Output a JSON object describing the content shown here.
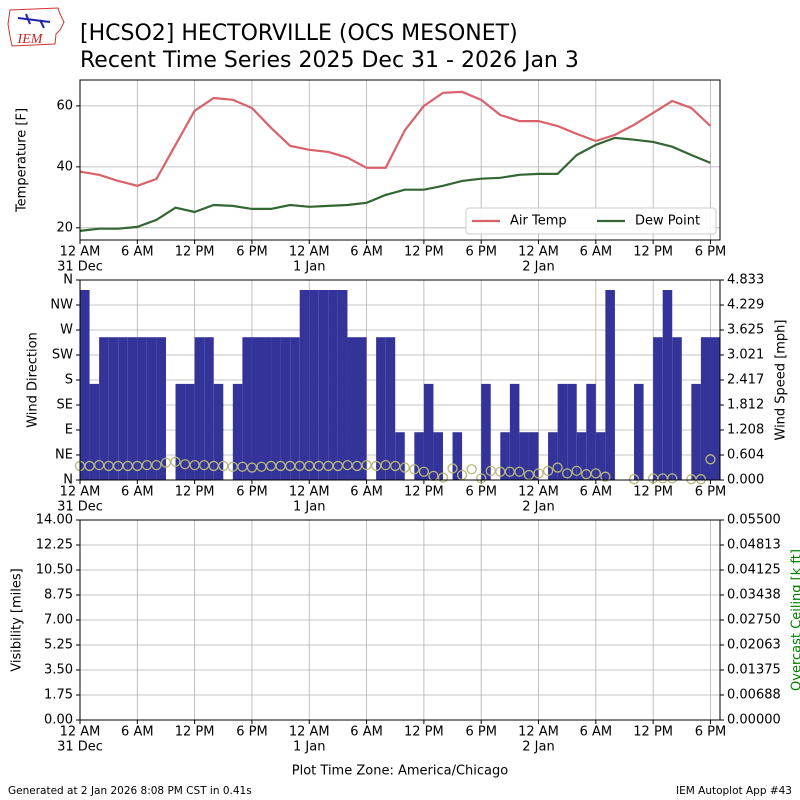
{
  "header": {
    "title": "[HCSO2] HECTORVILLE (OCS MESONET)",
    "subtitle": "Recent Time Series 2025 Dec 31 - 2026 Jan 3",
    "logo_text": "IEM"
  },
  "chart_data": [
    {
      "type": "line",
      "ylabel": "Temperature [F]",
      "grid": true,
      "legend": "lower right",
      "xlim": [
        0,
        67
      ],
      "xticks": [
        {
          "value": 0,
          "label": "12 AM"
        },
        {
          "value": 6,
          "label": "6 AM"
        },
        {
          "value": 12,
          "label": "12 PM"
        },
        {
          "value": 18,
          "label": "6 PM"
        },
        {
          "value": 24,
          "label": "12 AM"
        },
        {
          "value": 30,
          "label": "6 AM"
        },
        {
          "value": 36,
          "label": "12 PM"
        },
        {
          "value": 42,
          "label": "6 PM"
        },
        {
          "value": 48,
          "label": "12 AM"
        },
        {
          "value": 54,
          "label": "6 AM"
        },
        {
          "value": 60,
          "label": "12 PM"
        },
        {
          "value": 66,
          "label": "6 PM"
        }
      ],
      "xday_labels": [
        {
          "value": 0,
          "label": "31 Dec"
        },
        {
          "value": 24,
          "label": "1 Jan"
        },
        {
          "value": 48,
          "label": "2 Jan"
        }
      ],
      "ylim": [
        16,
        68.5
      ],
      "yticks": [
        20,
        40,
        60
      ],
      "x": [
        0,
        2,
        4,
        6,
        8,
        10,
        12,
        14,
        16,
        18,
        20,
        22,
        24,
        26,
        28,
        30,
        32,
        34,
        36,
        38,
        40,
        42,
        44,
        46,
        48,
        50,
        52,
        54,
        56,
        58,
        60,
        62,
        64,
        66
      ],
      "series": [
        {
          "name": "Air Temp",
          "color": "#d9616a",
          "values": [
            38.4,
            37.4,
            35.4,
            33.8,
            36,
            47.2,
            58.4,
            62.6,
            62,
            59.3,
            52.8,
            46.9,
            45.6,
            44.9,
            43,
            39.7,
            39.7,
            52,
            60,
            64.3,
            64.6,
            62,
            57,
            55,
            55,
            53.4,
            50.8,
            48.5,
            50.5,
            53.8,
            57.7,
            61.6,
            59.3,
            53.4
          ]
        },
        {
          "name": "Dew Point",
          "color": "#336633",
          "values": [
            19,
            19.7,
            19.7,
            20.3,
            22.6,
            26.6,
            25.2,
            27.5,
            27.2,
            26.2,
            26.2,
            27.5,
            26.9,
            27.2,
            27.5,
            28.2,
            30.8,
            32.5,
            32.5,
            33.8,
            35.4,
            36.1,
            36.4,
            37.4,
            37.7,
            37.7,
            43.9,
            47.2,
            49.5,
            48.9,
            48.2,
            46.6,
            43.9,
            41.3
          ]
        }
      ]
    },
    {
      "type": "bar",
      "ylabel": "Wind Direction",
      "y2label": "Wind Speed [mph]",
      "grid": true,
      "xlim": [
        0,
        67
      ],
      "xticks": [
        {
          "value": 0,
          "label": "12 AM"
        },
        {
          "value": 6,
          "label": "6 AM"
        },
        {
          "value": 12,
          "label": "12 PM"
        },
        {
          "value": 18,
          "label": "6 PM"
        },
        {
          "value": 24,
          "label": "12 AM"
        },
        {
          "value": 30,
          "label": "6 AM"
        },
        {
          "value": 36,
          "label": "12 PM"
        },
        {
          "value": 42,
          "label": "6 PM"
        },
        {
          "value": 48,
          "label": "12 AM"
        },
        {
          "value": 54,
          "label": "6 AM"
        },
        {
          "value": 60,
          "label": "12 PM"
        },
        {
          "value": 66,
          "label": "6 PM"
        }
      ],
      "xday_labels": [
        {
          "value": 0,
          "label": "31 Dec"
        },
        {
          "value": 24,
          "label": "1 Jan"
        },
        {
          "value": 48,
          "label": "2 Jan"
        }
      ],
      "ylim": [
        0,
        360
      ],
      "yticks": [
        {
          "value": 0,
          "label": "N"
        },
        {
          "value": 45,
          "label": "NE"
        },
        {
          "value": 90,
          "label": "E"
        },
        {
          "value": 135,
          "label": "SE"
        },
        {
          "value": 180,
          "label": "S"
        },
        {
          "value": 225,
          "label": "SW"
        },
        {
          "value": 270,
          "label": "W"
        },
        {
          "value": 315,
          "label": "NW"
        },
        {
          "value": 360,
          "label": "N"
        }
      ],
      "y2lim": [
        0,
        4.833
      ],
      "y2ticks": [
        {
          "value": 0,
          "label": "0.000"
        },
        0.604,
        1.208,
        1.812,
        2.417,
        3.021,
        3.625,
        4.229,
        4.833
      ],
      "x": [
        0,
        1,
        2,
        3,
        4,
        5,
        6,
        7,
        8,
        9,
        10,
        11,
        12,
        13,
        14,
        15,
        16,
        17,
        18,
        19,
        20,
        21,
        22,
        23,
        24,
        25,
        26,
        27,
        28,
        29,
        30,
        31,
        32,
        33,
        34,
        35,
        36,
        37,
        38,
        39,
        40,
        41,
        42,
        43,
        44,
        45,
        46,
        47,
        48,
        49,
        50,
        51,
        52,
        53,
        54,
        55,
        56,
        57,
        58,
        59,
        60,
        61,
        62,
        63,
        64,
        65,
        66
      ],
      "series": [
        {
          "color": "#333399",
          "values": [
            342,
            173,
            257,
            257,
            257,
            257,
            257,
            257,
            257,
            null,
            173,
            173,
            257,
            257,
            173,
            null,
            173,
            257,
            257,
            257,
            257,
            257,
            257,
            342,
            342,
            342,
            342,
            342,
            257,
            257,
            null,
            257,
            257,
            86,
            null,
            86,
            173,
            86,
            null,
            86,
            null,
            null,
            173,
            null,
            86,
            173,
            86,
            86,
            null,
            86,
            173,
            173,
            86,
            173,
            86,
            342,
            null,
            null,
            173,
            null,
            257,
            342,
            257,
            null,
            173,
            257,
            257
          ]
        },
        {
          "type": "scatter",
          "axis": "y2",
          "color": "#b8b87a",
          "values": [
            0.34,
            0.34,
            0.36,
            0.34,
            0.34,
            0.34,
            0.34,
            0.36,
            0.36,
            0.42,
            0.44,
            0.38,
            0.36,
            0.36,
            0.34,
            0.34,
            0.32,
            0.32,
            0.3,
            0.32,
            0.34,
            0.34,
            0.34,
            0.34,
            0.34,
            0.34,
            0.34,
            0.34,
            0.36,
            0.34,
            0.36,
            0.34,
            0.36,
            0.34,
            0.3,
            0.26,
            0.2,
            0.1,
            0.06,
            0.28,
            0.12,
            0.26,
            0.04,
            0.22,
            0.2,
            0.2,
            0.2,
            0.12,
            0.16,
            0.22,
            0.3,
            0.16,
            0.22,
            0.14,
            0.16,
            0.08,
            null,
            null,
            0.02,
            null,
            0.04,
            0.04,
            0.04,
            null,
            0.02,
            0.02,
            0.5
          ]
        }
      ]
    },
    {
      "type": "line",
      "ylabel": "Visibility [miles]",
      "y2label": "Overcast Ceiling [k ft]",
      "y2label_color": "#008000",
      "xlabel": "Plot Time Zone: America/Chicago",
      "grid": true,
      "xlim": [
        0,
        67
      ],
      "xticks": [
        {
          "value": 0,
          "label": "12 AM"
        },
        {
          "value": 6,
          "label": "6 AM"
        },
        {
          "value": 12,
          "label": "12 PM"
        },
        {
          "value": 18,
          "label": "6 PM"
        },
        {
          "value": 24,
          "label": "12 AM"
        },
        {
          "value": 30,
          "label": "6 AM"
        },
        {
          "value": 36,
          "label": "12 PM"
        },
        {
          "value": 42,
          "label": "6 PM"
        },
        {
          "value": 48,
          "label": "12 AM"
        },
        {
          "value": 54,
          "label": "6 AM"
        },
        {
          "value": 60,
          "label": "12 PM"
        },
        {
          "value": 66,
          "label": "6 PM"
        }
      ],
      "xday_labels": [
        {
          "value": 0,
          "label": "31 Dec"
        },
        {
          "value": 24,
          "label": "1 Jan"
        },
        {
          "value": 48,
          "label": "2 Jan"
        }
      ],
      "ylim": [
        0,
        14
      ],
      "yticks": [
        {
          "value": 0,
          "label": "0.00"
        },
        1.75,
        {
          "value": 3.5,
          "label": "3.50"
        },
        5.25,
        {
          "value": 7,
          "label": "7.00"
        },
        8.75,
        {
          "value": 10.5,
          "label": "10.50"
        },
        12.25,
        {
          "value": 14,
          "label": "14.00"
        }
      ],
      "y2lim": [
        0,
        0.055
      ],
      "y2ticks": [
        {
          "value": 0,
          "label": "0.00000"
        },
        0.00688,
        0.01375,
        0.02063,
        {
          "value": 0.0275,
          "label": "0.02750"
        },
        0.03438,
        0.04125,
        0.04813,
        {
          "value": 0.055,
          "label": "0.05500"
        }
      ],
      "series": []
    }
  ],
  "footer": {
    "left": "Generated at 2 Jan 2026 8:08 PM CST in 0.41s",
    "right": "IEM Autoplot App #43"
  }
}
